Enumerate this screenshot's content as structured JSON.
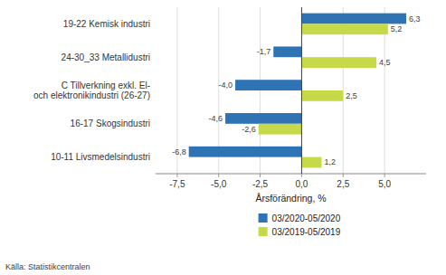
{
  "chart_data": {
    "type": "bar",
    "orientation": "horizontal",
    "categories": [
      "10-11 Livsmedelsindustri",
      "16-17 Skogsindustri",
      "C Tillverkning exkl. El-\noch elektronikindustri  (26-27)",
      "24-30_33 Metallidustri",
      "19-22 Kemisk industri"
    ],
    "series": [
      {
        "name": "03/2020-05/2020",
        "color": "#2e74b5",
        "values": [
          -6.8,
          -4.6,
          -4.0,
          -1.7,
          6.3
        ],
        "value_labels": [
          "-6,8",
          "-4,6",
          "-4,0",
          "-1,7",
          "6,3"
        ]
      },
      {
        "name": "03/2019-05/2019",
        "color": "#c5d949",
        "values": [
          1.2,
          -2.6,
          2.5,
          4.5,
          5.2
        ],
        "value_labels": [
          "1,2",
          "-2,6",
          "2,5",
          "4,5",
          "5,2"
        ]
      }
    ],
    "xlabel": "Årsförändring, %",
    "xlim": [
      -8.8,
      7.5
    ],
    "xticks": [
      {
        "value": -7.5,
        "label": "-7,5"
      },
      {
        "value": -5.0,
        "label": "-5,0"
      },
      {
        "value": -2.5,
        "label": "-2,5"
      },
      {
        "value": 0.0,
        "label": "0,0"
      },
      {
        "value": 2.5,
        "label": "2,5"
      },
      {
        "value": 5.0,
        "label": "5,0"
      }
    ],
    "annotations": [
      "Källa: Statistikcentralen"
    ],
    "data_labels": true,
    "grid": true,
    "legend": "bottom"
  }
}
